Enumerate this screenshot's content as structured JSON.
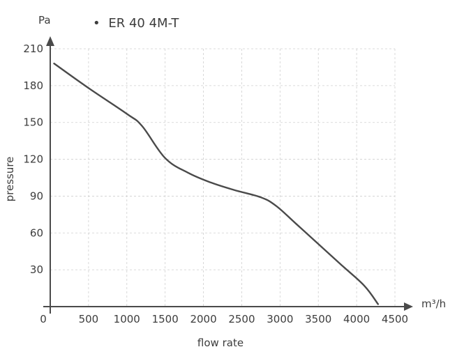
{
  "chart_data": {
    "type": "line",
    "title": "",
    "xlabel": "flow rate",
    "ylabel": "pressure",
    "x_unit": "m³/h",
    "y_unit": "Pa",
    "xlim": [
      0,
      4500
    ],
    "ylim": [
      0,
      210
    ],
    "x_ticks": [
      0,
      500,
      1000,
      1500,
      2000,
      2500,
      3000,
      3500,
      4000,
      4500
    ],
    "y_ticks": [
      30,
      60,
      90,
      120,
      150,
      180,
      210
    ],
    "x_tick_labels": [
      "0",
      "500",
      "1000",
      "1500",
      "2000",
      "2500",
      "3000",
      "3500",
      "4000",
      "4500"
    ],
    "y_tick_labels": [
      "30",
      "60",
      "90",
      "120",
      "150",
      "180",
      "210"
    ],
    "grid": true,
    "legend": {
      "position": "top-left",
      "marker": "•"
    },
    "series": [
      {
        "name": "ER 40 4M-T",
        "color": "#4a4a4a",
        "x": [
          50,
          500,
          1000,
          1200,
          1500,
          1800,
          2100,
          2400,
          2750,
          2950,
          3200,
          3500,
          3800,
          4100,
          4280
        ],
        "y": [
          198,
          178,
          157,
          147,
          121,
          109,
          101,
          95,
          89,
          82,
          68,
          51,
          34,
          17,
          2
        ]
      }
    ]
  }
}
